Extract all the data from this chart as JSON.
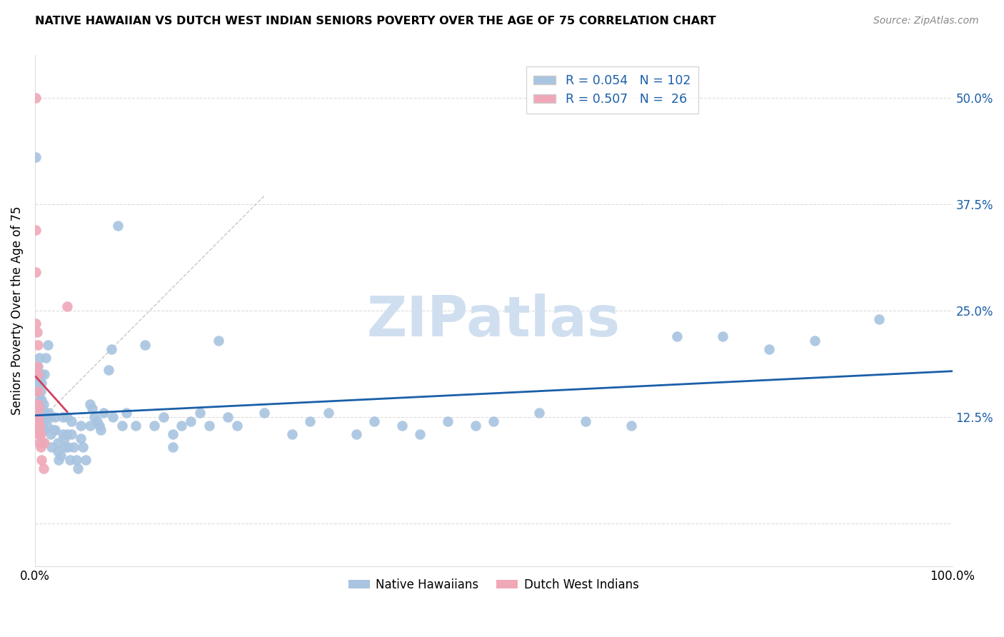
{
  "title": "NATIVE HAWAIIAN VS DUTCH WEST INDIAN SENIORS POVERTY OVER THE AGE OF 75 CORRELATION CHART",
  "source": "Source: ZipAtlas.com",
  "ylabel": "Seniors Poverty Over the Age of 75",
  "xlim": [
    0,
    1.0
  ],
  "ylim": [
    -0.05,
    0.55
  ],
  "xticks": [
    0.0,
    1.0
  ],
  "xticklabels": [
    "0.0%",
    "100.0%"
  ],
  "yticks": [
    0.0,
    0.125,
    0.25,
    0.375,
    0.5
  ],
  "right_yticklabels": [
    "",
    "12.5%",
    "25.0%",
    "37.5%",
    "50.0%"
  ],
  "blue_color": "#a8c4e0",
  "pink_color": "#f0a8b8",
  "blue_line_color": "#1a5fa8",
  "pink_line_color": "#d04060",
  "trend_line_color": "#c8c8c8",
  "native_hawaiian_R": "0.054",
  "native_hawaiian_N": "102",
  "dutch_west_indian_R": "0.507",
  "dutch_west_indian_N": " 26",
  "legend_label_blue": "Native Hawaiians",
  "legend_label_pink": "Dutch West Indians",
  "native_hawaiian_points": [
    [
      0.001,
      0.43
    ],
    [
      0.002,
      0.155
    ],
    [
      0.003,
      0.185
    ],
    [
      0.003,
      0.165
    ],
    [
      0.004,
      0.17
    ],
    [
      0.005,
      0.195
    ],
    [
      0.005,
      0.145
    ],
    [
      0.006,
      0.175
    ],
    [
      0.006,
      0.155
    ],
    [
      0.006,
      0.13
    ],
    [
      0.006,
      0.12
    ],
    [
      0.007,
      0.165
    ],
    [
      0.007,
      0.145
    ],
    [
      0.007,
      0.135
    ],
    [
      0.007,
      0.125
    ],
    [
      0.007,
      0.115
    ],
    [
      0.008,
      0.125
    ],
    [
      0.008,
      0.115
    ],
    [
      0.008,
      0.095
    ],
    [
      0.009,
      0.14
    ],
    [
      0.009,
      0.12
    ],
    [
      0.009,
      0.11
    ],
    [
      0.01,
      0.175
    ],
    [
      0.01,
      0.13
    ],
    [
      0.012,
      0.195
    ],
    [
      0.012,
      0.125
    ],
    [
      0.013,
      0.115
    ],
    [
      0.014,
      0.21
    ],
    [
      0.015,
      0.13
    ],
    [
      0.016,
      0.125
    ],
    [
      0.017,
      0.105
    ],
    [
      0.018,
      0.09
    ],
    [
      0.02,
      0.11
    ],
    [
      0.022,
      0.125
    ],
    [
      0.022,
      0.11
    ],
    [
      0.025,
      0.095
    ],
    [
      0.025,
      0.085
    ],
    [
      0.026,
      0.075
    ],
    [
      0.028,
      0.08
    ],
    [
      0.03,
      0.125
    ],
    [
      0.03,
      0.105
    ],
    [
      0.032,
      0.1
    ],
    [
      0.033,
      0.09
    ],
    [
      0.035,
      0.125
    ],
    [
      0.035,
      0.105
    ],
    [
      0.036,
      0.09
    ],
    [
      0.038,
      0.075
    ],
    [
      0.04,
      0.12
    ],
    [
      0.04,
      0.105
    ],
    [
      0.042,
      0.09
    ],
    [
      0.045,
      0.075
    ],
    [
      0.047,
      0.065
    ],
    [
      0.05,
      0.115
    ],
    [
      0.05,
      0.1
    ],
    [
      0.052,
      0.09
    ],
    [
      0.055,
      0.075
    ],
    [
      0.06,
      0.14
    ],
    [
      0.06,
      0.115
    ],
    [
      0.062,
      0.135
    ],
    [
      0.065,
      0.125
    ],
    [
      0.068,
      0.12
    ],
    [
      0.07,
      0.115
    ],
    [
      0.072,
      0.11
    ],
    [
      0.075,
      0.13
    ],
    [
      0.08,
      0.18
    ],
    [
      0.083,
      0.205
    ],
    [
      0.085,
      0.125
    ],
    [
      0.09,
      0.35
    ],
    [
      0.095,
      0.115
    ],
    [
      0.1,
      0.13
    ],
    [
      0.11,
      0.115
    ],
    [
      0.12,
      0.21
    ],
    [
      0.13,
      0.115
    ],
    [
      0.14,
      0.125
    ],
    [
      0.15,
      0.105
    ],
    [
      0.15,
      0.09
    ],
    [
      0.16,
      0.115
    ],
    [
      0.17,
      0.12
    ],
    [
      0.18,
      0.13
    ],
    [
      0.19,
      0.115
    ],
    [
      0.2,
      0.215
    ],
    [
      0.21,
      0.125
    ],
    [
      0.22,
      0.115
    ],
    [
      0.25,
      0.13
    ],
    [
      0.28,
      0.105
    ],
    [
      0.3,
      0.12
    ],
    [
      0.32,
      0.13
    ],
    [
      0.35,
      0.105
    ],
    [
      0.37,
      0.12
    ],
    [
      0.4,
      0.115
    ],
    [
      0.42,
      0.105
    ],
    [
      0.45,
      0.12
    ],
    [
      0.48,
      0.115
    ],
    [
      0.5,
      0.12
    ],
    [
      0.55,
      0.13
    ],
    [
      0.6,
      0.12
    ],
    [
      0.65,
      0.115
    ],
    [
      0.7,
      0.22
    ],
    [
      0.75,
      0.22
    ],
    [
      0.8,
      0.205
    ],
    [
      0.85,
      0.215
    ],
    [
      0.92,
      0.24
    ]
  ],
  "dutch_west_indian_points": [
    [
      0.001,
      0.5
    ],
    [
      0.001,
      0.345
    ],
    [
      0.001,
      0.295
    ],
    [
      0.001,
      0.235
    ],
    [
      0.002,
      0.225
    ],
    [
      0.002,
      0.185
    ],
    [
      0.002,
      0.175
    ],
    [
      0.003,
      0.21
    ],
    [
      0.003,
      0.175
    ],
    [
      0.003,
      0.155
    ],
    [
      0.003,
      0.14
    ],
    [
      0.003,
      0.125
    ],
    [
      0.004,
      0.135
    ],
    [
      0.004,
      0.12
    ],
    [
      0.004,
      0.115
    ],
    [
      0.004,
      0.105
    ],
    [
      0.005,
      0.115
    ],
    [
      0.005,
      0.11
    ],
    [
      0.005,
      0.105
    ],
    [
      0.005,
      0.095
    ],
    [
      0.006,
      0.105
    ],
    [
      0.006,
      0.09
    ],
    [
      0.007,
      0.075
    ],
    [
      0.009,
      0.065
    ],
    [
      0.035,
      0.255
    ],
    [
      0.01,
      0.095
    ]
  ],
  "watermark": "ZIPatlas",
  "watermark_color": "#d0dff0",
  "background_color": "#ffffff"
}
